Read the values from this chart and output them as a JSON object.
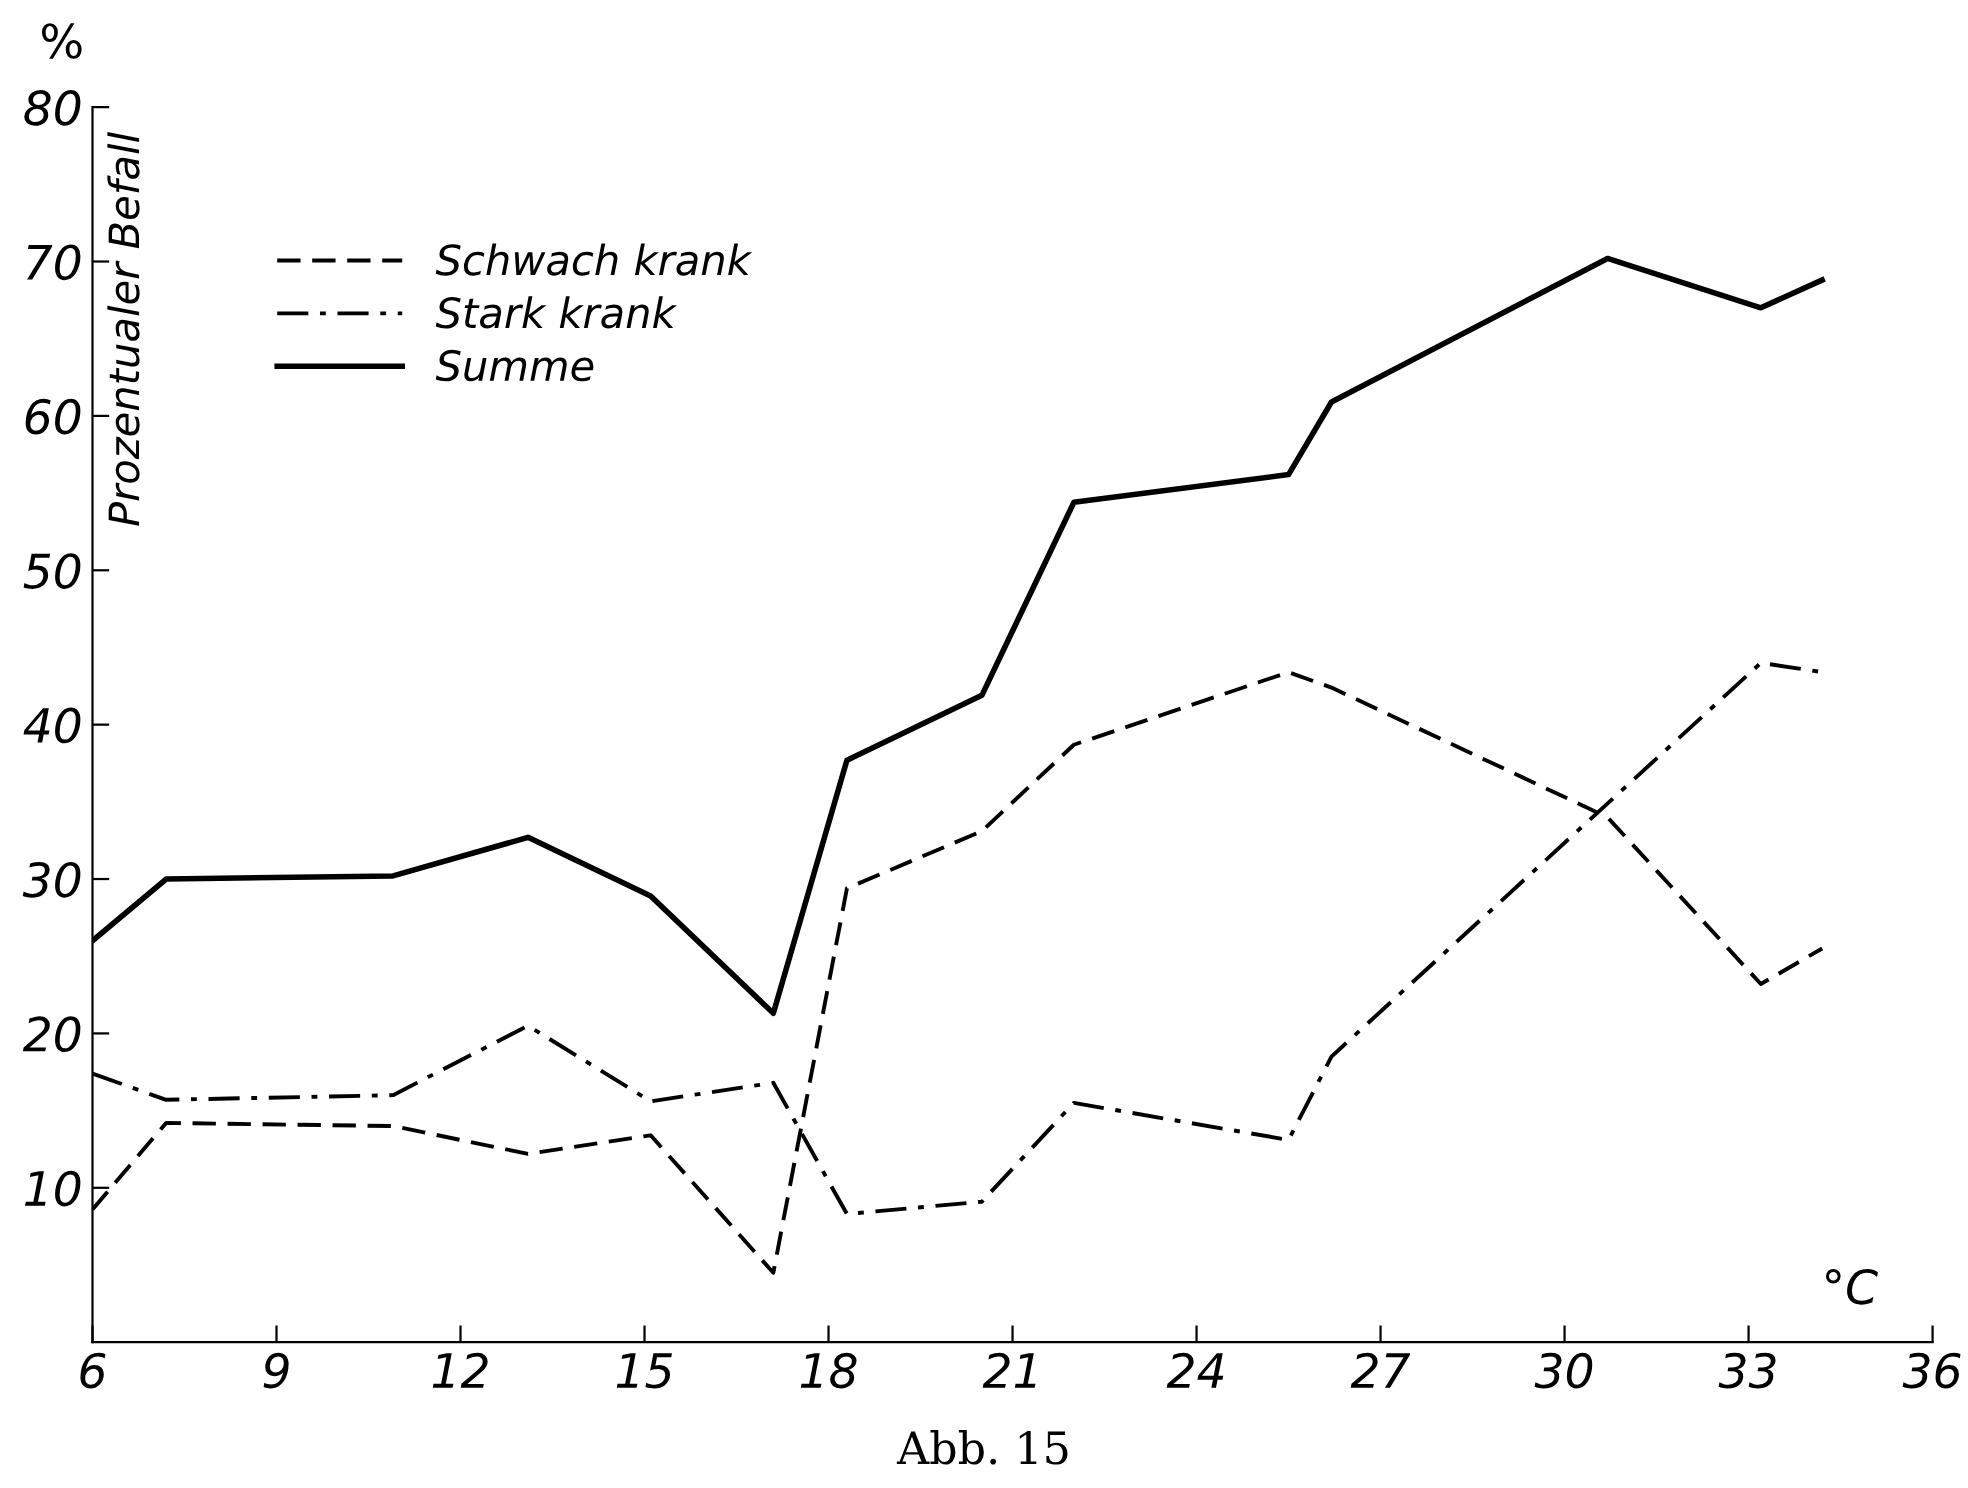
{
  "chart_data": {
    "type": "line",
    "xlabel": "°C",
    "ylabel": "Prozentualer Befall",
    "annotations": [
      "%",
      "Abb. 15"
    ],
    "xlim": [
      6,
      36
    ],
    "xticks": [
      6,
      9,
      12,
      15,
      18,
      21,
      24,
      27,
      30,
      33,
      36
    ],
    "ylim": [
      0,
      80
    ],
    "yticks": [
      10,
      20,
      30,
      40,
      50,
      60,
      70,
      80
    ],
    "grid": false,
    "legend": "top left",
    "marker": "none",
    "series": [
      {
        "name": "Schwach krank",
        "color": "#000000",
        "line_style": "dashed",
        "x": [
          6,
          7.2,
          10.9,
          13.1,
          15.1,
          17.1,
          18.3,
          20.5,
          22.0,
          25.5,
          26.2,
          30.7,
          33.2,
          34.2
        ],
        "values": [
          8.6,
          14.2,
          14.0,
          12.2,
          13.4,
          4.5,
          29.4,
          33.1,
          38.7,
          43.4,
          42.4,
          34.0,
          23.2,
          25.5
        ]
      },
      {
        "name": "Stark krank",
        "color": "#000000",
        "line_style": "dashdot",
        "x": [
          6,
          7.2,
          10.9,
          13.1,
          15.1,
          17.1,
          18.3,
          20.5,
          22.0,
          25.5,
          26.2,
          33.2,
          34.2
        ],
        "values": [
          17.4,
          15.7,
          16.0,
          20.5,
          15.6,
          16.8,
          8.3,
          9.1,
          15.5,
          13.1,
          18.5,
          44.0,
          43.4
        ]
      },
      {
        "name": "Summe",
        "color": "#000000",
        "line_style": "solid",
        "x": [
          6,
          7.2,
          10.9,
          13.1,
          15.1,
          17.1,
          18.3,
          20.5,
          22.0,
          25.5,
          26.2,
          30.7,
          33.2,
          34.2
        ],
        "values": [
          26.0,
          30.0,
          30.2,
          32.7,
          28.9,
          21.3,
          37.7,
          41.9,
          54.4,
          56.2,
          60.9,
          70.2,
          67.0,
          68.8
        ]
      }
    ]
  }
}
